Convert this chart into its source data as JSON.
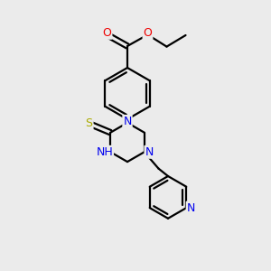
{
  "bg_color": "#ebebeb",
  "atom_colors": {
    "C": "#000000",
    "N": "#0000ee",
    "O": "#ee0000",
    "S": "#aaaa00",
    "H": "#555555"
  },
  "bond_lw": 1.6,
  "figsize": [
    3.0,
    3.0
  ],
  "dpi": 100
}
